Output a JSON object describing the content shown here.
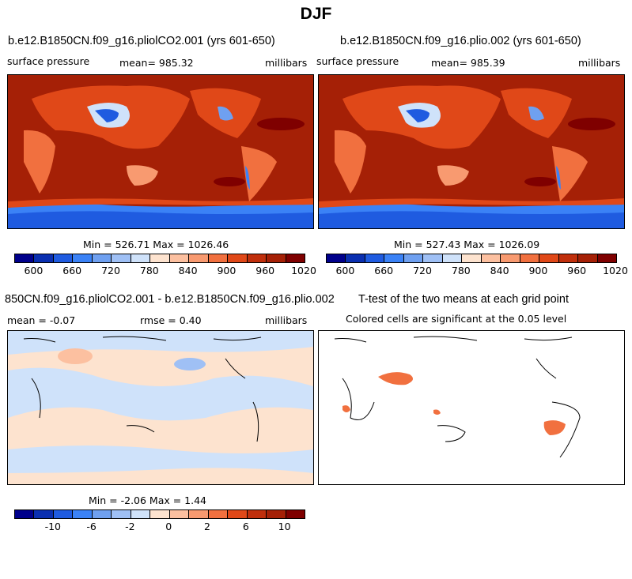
{
  "page_title": "DJF",
  "chart_data": [
    {
      "type": "heatmap",
      "title": "b.e12.B1850CN.f09_g16.pliolCO2.001 (yrs 601-650)",
      "variable": "surface pressure",
      "mean_label": "mean= 985.32",
      "units": "millibars",
      "minmax_label": "Min = 526.71 Max = 1026.46",
      "min": 526.71,
      "max": 1026.46,
      "colorbar_ticks": [
        "600",
        "660",
        "720",
        "780",
        "840",
        "900",
        "960",
        "1020"
      ],
      "colorbar_colors": [
        "#00008b",
        "#0a2fb0",
        "#1f5be0",
        "#3b82f6",
        "#6fa0f0",
        "#9fc0f5",
        "#cfe2fa",
        "#fde3cf",
        "#fcc0a0",
        "#f89a70",
        "#f1703f",
        "#e04818",
        "#c02f0c",
        "#a52006",
        "#7f0000"
      ]
    },
    {
      "type": "heatmap",
      "title": "b.e12.B1850CN.f09_g16.plio.002 (yrs 601-650)",
      "variable": "surface pressure",
      "mean_label": "mean= 985.39",
      "units": "millibars",
      "minmax_label": "Min = 527.43 Max = 1026.09",
      "min": 527.43,
      "max": 1026.09,
      "colorbar_ticks": [
        "600",
        "660",
        "720",
        "780",
        "840",
        "900",
        "960",
        "1020"
      ],
      "colorbar_colors": [
        "#00008b",
        "#0a2fb0",
        "#1f5be0",
        "#3b82f6",
        "#6fa0f0",
        "#9fc0f5",
        "#cfe2fa",
        "#fde3cf",
        "#fcc0a0",
        "#f89a70",
        "#f1703f",
        "#e04818",
        "#c02f0c",
        "#a52006",
        "#7f0000"
      ]
    },
    {
      "type": "heatmap",
      "title": "850CN.f09_g16.pliolCO2.001 - b.e12.B1850CN.f09_g16.plio.002",
      "mean_label": "mean =   -0.07",
      "rmse_label": "rmse =     0.40",
      "units": "millibars",
      "minmax_label": "Min =   -2.06 Max =    1.44",
      "min": -2.06,
      "max": 1.44,
      "colorbar_ticks": [
        "-10",
        "-6",
        "-2",
        "0",
        "2",
        "6",
        "10"
      ],
      "colorbar_colors": [
        "#00008b",
        "#0a2fb0",
        "#1f5be0",
        "#3b82f6",
        "#6fa0f0",
        "#9fc0f5",
        "#cfe2fa",
        "#fde3cf",
        "#fcc0a0",
        "#f89a70",
        "#f1703f",
        "#e04818",
        "#c02f0c",
        "#a52006",
        "#7f0000"
      ]
    },
    {
      "type": "heatmap",
      "title": "T-test of the two means at each grid point",
      "subtitle": "Colored cells are significant at the 0.05 level"
    }
  ]
}
